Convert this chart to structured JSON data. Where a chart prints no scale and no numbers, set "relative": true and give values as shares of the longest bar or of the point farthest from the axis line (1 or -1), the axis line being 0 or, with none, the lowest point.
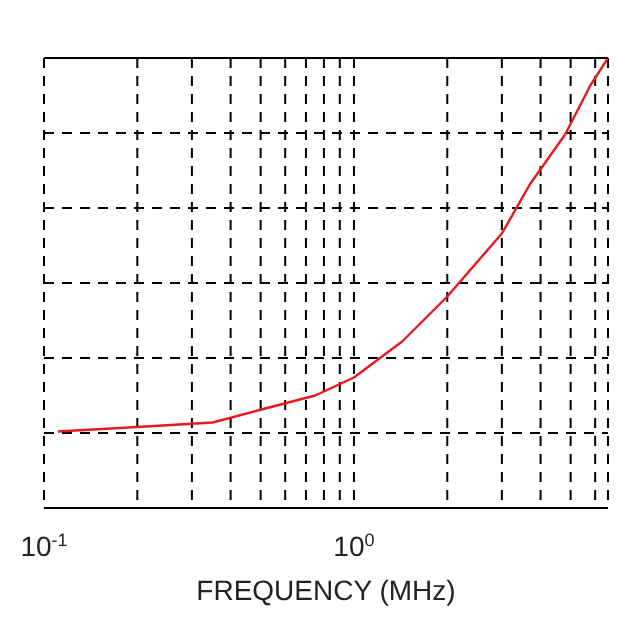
{
  "chart_data": {
    "type": "line",
    "xlabel": "FREQUENCY (MHz)",
    "relative": true,
    "log": "x",
    "grid": true,
    "marker": "none",
    "line_style": "solid",
    "xlim": [
      0.1,
      6.6
    ],
    "xticks": [
      {
        "value": 0.1,
        "label": "10$^{-1}$"
      },
      {
        "value": 0.2,
        "label": null
      },
      {
        "value": 0.3,
        "label": null
      },
      {
        "value": 0.4,
        "label": null
      },
      {
        "value": 0.5,
        "label": null
      },
      {
        "value": 0.6,
        "label": null
      },
      {
        "value": 0.7,
        "label": null
      },
      {
        "value": 0.8,
        "label": null
      },
      {
        "value": 0.9,
        "label": null
      },
      {
        "value": 1,
        "label": "10$^{0}$"
      },
      {
        "value": 2,
        "label": null
      },
      {
        "value": 3,
        "label": null
      },
      {
        "value": 4,
        "label": null
      },
      {
        "value": 5,
        "label": null
      },
      {
        "value": 6,
        "label": null
      }
    ],
    "x": [
      0.111,
      0.2,
      0.35,
      0.51,
      0.75,
      1,
      1.43,
      2,
      3,
      3.7,
      4.8,
      5.8,
      6.6
    ],
    "series": [
      {
        "color": "#e8191e",
        "values": [
          0.17,
          0.18,
          0.19,
          0.22,
          0.25,
          0.29,
          0.37,
          0.47,
          0.61,
          0.72,
          0.83,
          0.94,
          1
        ]
      }
    ]
  }
}
